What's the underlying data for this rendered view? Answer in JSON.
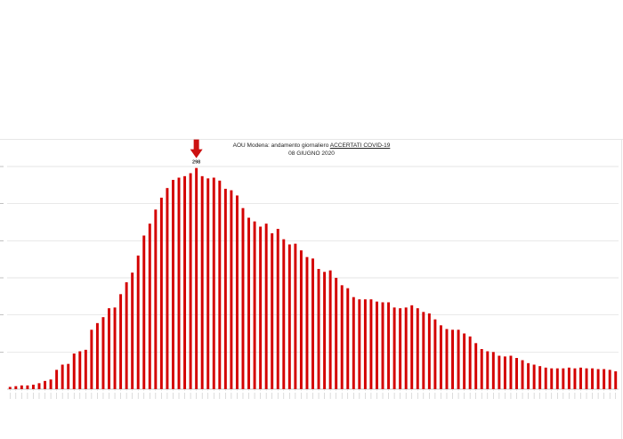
{
  "chart_data": {
    "type": "bar",
    "title_prefix": "AOU Modena: andamento giornaliero ",
    "title_emphasis": "ACCERTATI COVID-19",
    "subtitle": "08  GIUGNO 2020",
    "peak_label": "298",
    "ylim": [
      0,
      300
    ],
    "grid": true,
    "bar_color": "#d40000",
    "arrow_color": "#cc1111",
    "values": [
      3,
      4,
      5,
      5,
      6,
      8,
      11,
      13,
      26,
      33,
      34,
      48,
      51,
      53,
      80,
      89,
      97,
      109,
      110,
      128,
      144,
      157,
      180,
      207,
      223,
      242,
      258,
      271,
      282,
      285,
      287,
      291,
      298,
      287,
      284,
      285,
      281,
      270,
      268,
      261,
      244,
      231,
      226,
      219,
      223,
      210,
      216,
      202,
      195,
      196,
      187,
      178,
      176,
      162,
      158,
      160,
      150,
      140,
      136,
      124,
      121,
      121,
      121,
      118,
      117,
      117,
      110,
      109,
      110,
      113,
      109,
      104,
      102,
      94,
      86,
      81,
      80,
      80,
      75,
      71,
      62,
      54,
      51,
      50,
      45,
      44,
      45,
      42,
      39,
      35,
      33,
      31,
      29,
      28,
      28,
      28,
      29,
      28,
      29,
      28,
      28,
      27,
      27,
      26,
      24
    ]
  }
}
